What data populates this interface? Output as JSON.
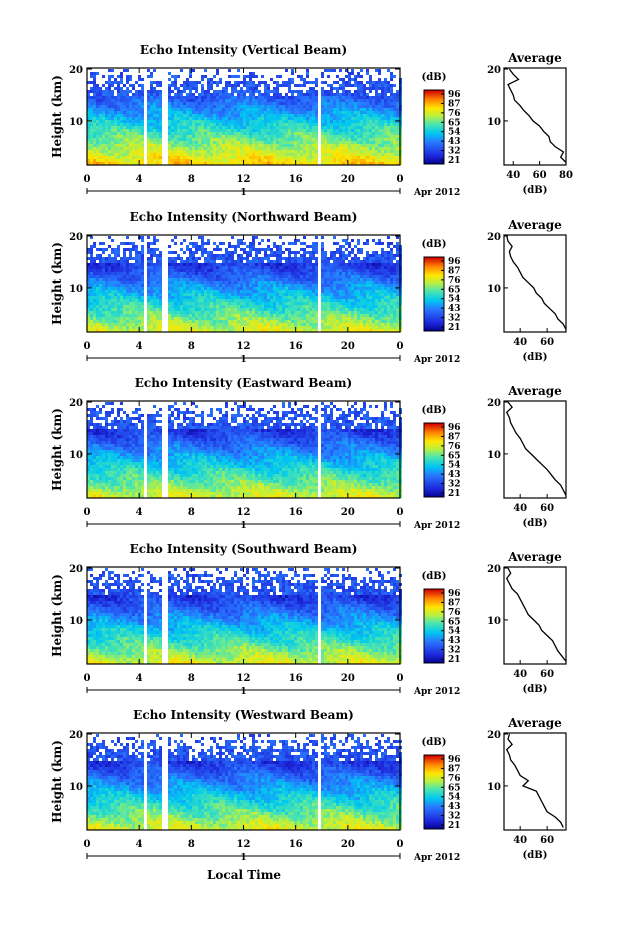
{
  "figure": {
    "xlabel": "Local Time",
    "colorbar_units": "(dB)",
    "colorbar_ticks": [
      "96",
      "87",
      "76",
      "65",
      "54",
      "43",
      "32",
      "21"
    ],
    "date_label": "Apr 2012",
    "date_day": "1"
  },
  "chart_data": [
    {
      "type": "heatmap",
      "title": "Echo Intensity (Vertical Beam)",
      "ylabel": "Height (km)",
      "x_ticks": [
        "0",
        "4",
        "8",
        "12",
        "16",
        "20",
        "0"
      ],
      "y_ticks": [
        "10",
        "20"
      ],
      "x_range": [
        0,
        24
      ],
      "y_range": [
        1.5,
        20.2
      ],
      "value_range": [
        21,
        96
      ],
      "data_gaps_hours": [
        [
          4.2,
          4.6
        ],
        [
          5.7,
          6.0
        ],
        [
          17.6,
          17.9
        ]
      ],
      "profile": {
        "title": "Average",
        "xlabel": "(dB)",
        "x_ticks": [
          "40",
          "60",
          "80"
        ],
        "y_ticks": [
          "10",
          "20"
        ],
        "xlim": [
          33,
          80
        ],
        "heights_km": [
          2,
          3,
          4,
          5,
          6,
          7,
          8,
          9,
          10,
          11,
          12,
          13,
          14,
          15,
          16,
          17,
          18,
          19,
          20
        ],
        "values_db": [
          80,
          76,
          78,
          72,
          68,
          67,
          63,
          60,
          55,
          52,
          48,
          45,
          41,
          40,
          38,
          36,
          44,
          40,
          37
        ]
      }
    },
    {
      "type": "heatmap",
      "title": "Echo Intensity (Northward Beam)",
      "ylabel": "Height (km)",
      "x_ticks": [
        "0",
        "4",
        "8",
        "12",
        "16",
        "20",
        "0"
      ],
      "y_ticks": [
        "10",
        "20"
      ],
      "x_range": [
        0,
        24
      ],
      "y_range": [
        1.5,
        20.2
      ],
      "value_range": [
        21,
        96
      ],
      "data_gaps_hours": [
        [
          4.2,
          4.6
        ],
        [
          5.7,
          6.0
        ],
        [
          17.6,
          17.9
        ]
      ],
      "profile": {
        "title": "Average",
        "xlabel": "(dB)",
        "x_ticks": [
          "40",
          "60"
        ],
        "y_ticks": [
          "10",
          "20"
        ],
        "xlim": [
          28,
          74
        ],
        "heights_km": [
          2,
          3,
          4,
          5,
          6,
          7,
          8,
          9,
          10,
          11,
          12,
          13,
          14,
          15,
          16,
          17,
          18,
          19,
          20
        ],
        "values_db": [
          74,
          72,
          68,
          66,
          62,
          58,
          56,
          52,
          50,
          46,
          42,
          40,
          38,
          35,
          33,
          32,
          34,
          31,
          30
        ]
      }
    },
    {
      "type": "heatmap",
      "title": "Echo Intensity (Eastward Beam)",
      "ylabel": "Height (km)",
      "x_ticks": [
        "0",
        "4",
        "8",
        "12",
        "16",
        "20",
        "0"
      ],
      "y_ticks": [
        "10",
        "20"
      ],
      "x_range": [
        0,
        24
      ],
      "y_range": [
        1.5,
        20.2
      ],
      "value_range": [
        21,
        96
      ],
      "data_gaps_hours": [
        [
          4.2,
          4.6
        ],
        [
          5.7,
          6.0
        ],
        [
          17.6,
          17.9
        ]
      ],
      "profile": {
        "title": "Average",
        "xlabel": "(dB)",
        "x_ticks": [
          "40",
          "60"
        ],
        "y_ticks": [
          "10",
          "20"
        ],
        "xlim": [
          28,
          74
        ],
        "heights_km": [
          2,
          3,
          4,
          5,
          6,
          7,
          8,
          9,
          10,
          11,
          12,
          13,
          14,
          15,
          16,
          17,
          18,
          19,
          20
        ],
        "values_db": [
          74,
          72,
          70,
          66,
          63,
          60,
          56,
          52,
          48,
          44,
          42,
          40,
          37,
          35,
          33,
          32,
          30,
          34,
          31
        ]
      }
    },
    {
      "type": "heatmap",
      "title": "Echo Intensity (Southward Beam)",
      "ylabel": "Height (km)",
      "x_ticks": [
        "0",
        "4",
        "8",
        "12",
        "16",
        "20",
        "0"
      ],
      "y_ticks": [
        "10",
        "20"
      ],
      "x_range": [
        0,
        24
      ],
      "y_range": [
        1.5,
        20.2
      ],
      "value_range": [
        21,
        96
      ],
      "data_gaps_hours": [
        [
          4.2,
          4.6
        ],
        [
          5.7,
          6.0
        ],
        [
          17.6,
          17.9
        ]
      ],
      "profile": {
        "title": "Average",
        "xlabel": "(dB)",
        "x_ticks": [
          "40",
          "60"
        ],
        "y_ticks": [
          "10",
          "20"
        ],
        "xlim": [
          28,
          74
        ],
        "heights_km": [
          2,
          3,
          4,
          5,
          6,
          7,
          8,
          9,
          10,
          11,
          12,
          13,
          14,
          15,
          16,
          17,
          18,
          19,
          20
        ],
        "values_db": [
          74,
          71,
          68,
          66,
          64,
          60,
          56,
          54,
          50,
          46,
          44,
          42,
          40,
          38,
          34,
          32,
          30,
          33,
          31
        ]
      }
    },
    {
      "type": "heatmap",
      "title": "Echo Intensity (Westward Beam)",
      "ylabel": "Height (km)",
      "x_ticks": [
        "0",
        "4",
        "8",
        "12",
        "16",
        "20",
        "0"
      ],
      "y_ticks": [
        "10",
        "20"
      ],
      "x_range": [
        0,
        24
      ],
      "y_range": [
        1.5,
        20.2
      ],
      "value_range": [
        21,
        96
      ],
      "data_gaps_hours": [
        [
          4.2,
          4.6
        ],
        [
          5.7,
          6.0
        ],
        [
          17.6,
          17.9
        ]
      ],
      "profile": {
        "title": "Average",
        "xlabel": "(dB)",
        "x_ticks": [
          "40",
          "60"
        ],
        "y_ticks": [
          "10",
          "20"
        ],
        "xlim": [
          28,
          74
        ],
        "heights_km": [
          2,
          3,
          4,
          5,
          6,
          7,
          8,
          9,
          10,
          11,
          12,
          13,
          14,
          15,
          16,
          17,
          18,
          19,
          20
        ],
        "values_db": [
          72,
          70,
          66,
          60,
          58,
          56,
          54,
          52,
          42,
          46,
          40,
          38,
          36,
          33,
          32,
          30,
          34,
          31,
          32
        ]
      }
    }
  ]
}
